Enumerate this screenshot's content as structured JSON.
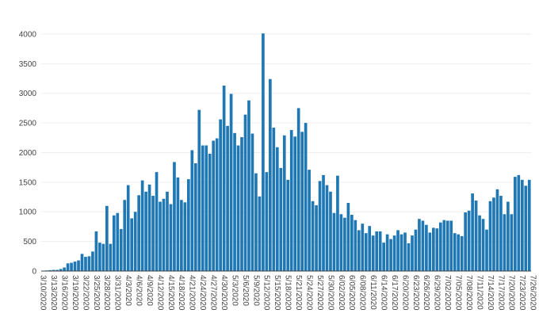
{
  "chart_data": {
    "type": "bar",
    "title": "",
    "xlabel": "",
    "ylabel": "",
    "ylim": [
      0,
      4200
    ],
    "y_ticks": [
      0,
      500,
      1000,
      1500,
      2000,
      2500,
      3000,
      3500,
      4000
    ],
    "y_tick_labels": [
      "0",
      "500",
      "1000",
      "1500",
      "2000",
      "2500",
      "3000",
      "3500",
      "4000"
    ],
    "grid": true,
    "bar_color": "#1f77b4",
    "x_tick_labels": [
      "3/10/2020",
      "3/13/2020",
      "3/16/2020",
      "3/19/2020",
      "3/22/2020",
      "3/25/2020",
      "3/28/2020",
      "3/31/2020",
      "4/3/2020",
      "4/6/2020",
      "4/9/2020",
      "4/12/2020",
      "4/15/2020",
      "4/18/2020",
      "4/21/2020",
      "4/24/2020",
      "4/27/2020",
      "4/30/2020",
      "5/3/2020",
      "5/6/2020",
      "5/9/2020",
      "5/12/2020",
      "5/15/2020",
      "5/18/2020",
      "5/21/2020",
      "5/24/2020",
      "5/27/2020",
      "5/30/2020",
      "6/02/2020",
      "6/05/2020",
      "6/08/2020",
      "6/11/2020",
      "6/14/2020",
      "6/17/2020",
      "6/20/2020",
      "6/23/2020",
      "6/26/2020",
      "6/29/2020",
      "7/02/2020",
      "7/05/2020",
      "7/08/2020",
      "7/11/2020",
      "7/14/2020",
      "7/17/2020",
      "7/20/2020",
      "7/23/2020",
      "7/26/2020"
    ],
    "x_tick_every": 3,
    "values": [
      5,
      10,
      15,
      20,
      20,
      35,
      60,
      130,
      140,
      160,
      180,
      290,
      240,
      250,
      330,
      670,
      480,
      460,
      1100,
      460,
      940,
      980,
      710,
      1200,
      1450,
      890,
      1000,
      1280,
      1530,
      1340,
      1460,
      1270,
      1670,
      1170,
      1220,
      1340,
      1130,
      1840,
      1580,
      1200,
      1160,
      1550,
      2040,
      1820,
      2720,
      2120,
      2120,
      1980,
      2200,
      2240,
      2560,
      3130,
      2450,
      2990,
      2330,
      2120,
      2260,
      2640,
      2880,
      2320,
      1650,
      1260,
      4010,
      1670,
      3240,
      2420,
      2090,
      1740,
      2290,
      1540,
      2380,
      2270,
      2750,
      2350,
      2500,
      1710,
      1180,
      1110,
      1520,
      1620,
      1450,
      1340,
      980,
      1610,
      960,
      900,
      1150,
      950,
      860,
      690,
      800,
      640,
      760,
      600,
      670,
      670,
      480,
      620,
      540,
      600,
      690,
      620,
      650,
      470,
      600,
      700,
      880,
      850,
      780,
      650,
      730,
      720,
      820,
      860,
      850,
      850,
      640,
      620,
      590,
      990,
      1020,
      1310,
      1190,
      940,
      880,
      700,
      1180,
      1240,
      1380,
      1270,
      960,
      1170,
      960,
      1590,
      1620,
      1540,
      1440,
      1540
    ]
  }
}
